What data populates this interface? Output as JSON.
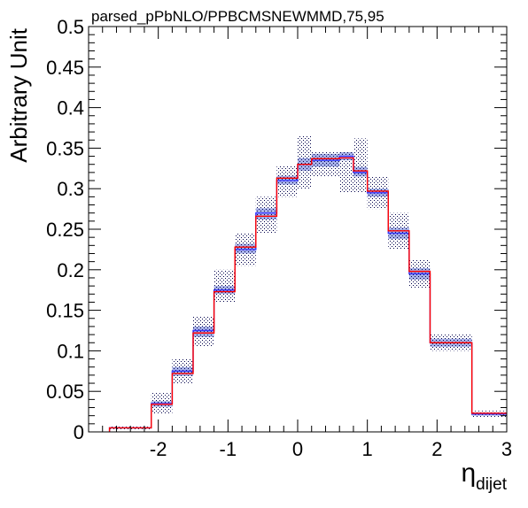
{
  "chart_data": {
    "type": "step-histogram",
    "title": "parsed_pPbNLO/PPBCMSNEWMMD,75,95",
    "ylabel": "Arbitrary Unit",
    "xlabel": "η",
    "xlabel_subscript": "dijet",
    "xlim": [
      -3,
      3
    ],
    "ylim": [
      0,
      0.5
    ],
    "x_ticks": [
      -2,
      -1,
      0,
      1,
      2,
      3
    ],
    "x_tick_labels": [
      "-2",
      "-1",
      "0",
      "1",
      "2",
      "3"
    ],
    "y_ticks": [
      0,
      0.05,
      0.1,
      0.15,
      0.2,
      0.25,
      0.3,
      0.35,
      0.4,
      0.45,
      0.5
    ],
    "y_tick_labels": [
      "0",
      "0.05",
      "0.1",
      "0.15",
      "0.2",
      "0.25",
      "0.3",
      "0.35",
      "0.4",
      "0.45",
      "0.5"
    ],
    "bin_edges": [
      -2.7,
      -2.4,
      -2.1,
      -1.8,
      -1.5,
      -1.2,
      -0.9,
      -0.6,
      -0.3,
      0.0,
      0.2,
      0.4,
      0.6,
      0.8,
      1.0,
      1.3,
      1.6,
      1.9,
      2.2,
      2.5,
      3.0
    ],
    "series": [
      {
        "kind": "blue-line",
        "values": [
          0.005,
          0.005,
          0.035,
          0.075,
          0.125,
          0.175,
          0.225,
          0.27,
          0.31,
          0.33,
          0.335,
          0.335,
          0.34,
          0.32,
          0.295,
          0.245,
          0.195,
          0.11,
          0.11,
          0.022
        ]
      },
      {
        "kind": "red-line",
        "values": [
          0.005,
          0.005,
          0.034,
          0.072,
          0.122,
          0.173,
          0.228,
          0.266,
          0.313,
          0.33,
          0.337,
          0.337,
          0.338,
          0.322,
          0.297,
          0.248,
          0.198,
          0.11,
          0.11,
          0.023
        ]
      }
    ],
    "bands": [
      {
        "kind": "blue-solid-band",
        "low": [
          0.004,
          0.004,
          0.031,
          0.069,
          0.117,
          0.17,
          0.22,
          0.262,
          0.305,
          0.322,
          0.327,
          0.327,
          0.335,
          0.315,
          0.29,
          0.238,
          0.188,
          0.105,
          0.105,
          0.02
        ],
        "high": [
          0.006,
          0.006,
          0.038,
          0.08,
          0.13,
          0.18,
          0.232,
          0.276,
          0.316,
          0.338,
          0.343,
          0.343,
          0.345,
          0.327,
          0.3,
          0.252,
          0.202,
          0.115,
          0.115,
          0.024
        ]
      },
      {
        "kind": "dotted-band",
        "low": [
          0.003,
          0.003,
          0.022,
          0.06,
          0.105,
          0.16,
          0.205,
          0.245,
          0.29,
          0.3,
          0.315,
          0.315,
          0.295,
          0.295,
          0.275,
          0.225,
          0.178,
          0.1,
          0.1,
          0.018
        ],
        "high": [
          0.007,
          0.007,
          0.048,
          0.09,
          0.142,
          0.2,
          0.245,
          0.29,
          0.328,
          0.365,
          0.345,
          0.345,
          0.345,
          0.362,
          0.315,
          0.27,
          0.212,
          0.12,
          0.12,
          0.026
        ]
      }
    ],
    "colors": {
      "blue_line": "#3a3aff",
      "red_line": "#ff0000",
      "blue_band": "#a7b1e8",
      "dots": "#00004a",
      "axis": "#000000"
    },
    "grid": false,
    "legend": "none"
  }
}
